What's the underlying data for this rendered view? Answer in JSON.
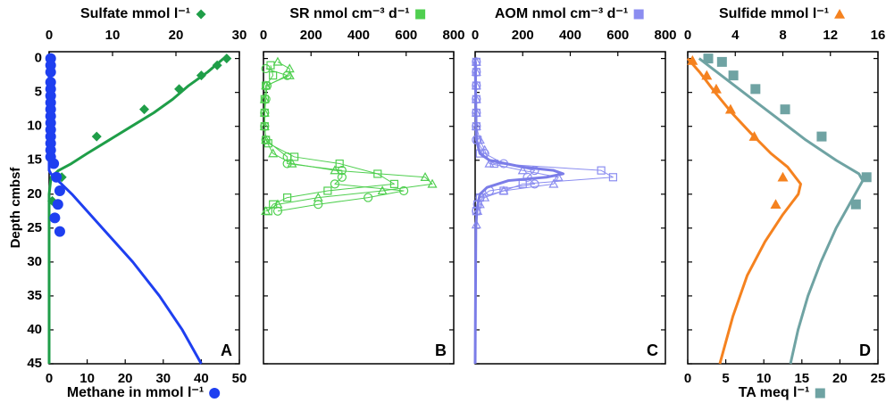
{
  "chart_data": [
    {
      "type": "scatter",
      "panel_label": "A",
      "ylabel": "Depth cmbsf",
      "show_ytick_labels": true,
      "ylim": [
        -1,
        45
      ],
      "yticks": [
        0,
        5,
        10,
        15,
        20,
        25,
        30,
        35,
        40,
        45
      ],
      "x2label": "Sulfate mmol l⁻¹",
      "x2lim": [
        0,
        30
      ],
      "x2ticks": [
        0,
        10,
        20,
        30
      ],
      "xlabel": "Methane in mmol l⁻¹",
      "xlim": [
        0,
        50
      ],
      "xticks": [
        0,
        10,
        20,
        30,
        40,
        50
      ],
      "series": [
        {
          "axis": "x2",
          "color": "#1f9e48",
          "marker": "diamond",
          "filled": true,
          "line": false,
          "depth": [
            0,
            1,
            2.5,
            4.5,
            7.5,
            11.5,
            17.5,
            21
          ],
          "values": [
            28,
            26.5,
            24,
            20.5,
            15,
            7.5,
            2,
            0.5
          ]
        },
        {
          "axis": "x2",
          "color": "#1f9e48",
          "marker": "none",
          "filled": false,
          "line": true,
          "depth": [
            0,
            2,
            4,
            6,
            8,
            10,
            12,
            14,
            15.5,
            16.5,
            17.5,
            20,
            45
          ],
          "values": [
            27.5,
            25,
            22,
            19.5,
            16.5,
            13,
            9.5,
            6,
            3.5,
            1.5,
            0.3,
            0,
            0
          ]
        },
        {
          "axis": "x",
          "color": "#1e3ff0",
          "marker": "circle",
          "filled": true,
          "line": false,
          "depth": [
            0,
            1,
            2,
            3.5,
            4.5,
            5.5,
            6.5,
            7.5,
            8.5,
            9.5,
            10.5,
            11.5,
            12.5,
            13.5,
            14.5,
            15.5,
            17.5,
            19.5,
            21.5,
            23.5,
            25.5
          ],
          "values": [
            0.4,
            0.4,
            0.4,
            0.4,
            0.4,
            0.4,
            0.4,
            0.4,
            0.4,
            0.4,
            0.4,
            0.4,
            0.4,
            0.4,
            0.4,
            1.2,
            1.9,
            2.8,
            2.3,
            1.5,
            2.8
          ]
        },
        {
          "axis": "x",
          "color": "#1e3ff0",
          "marker": "none",
          "filled": false,
          "line": true,
          "depth": [
            0,
            16.5,
            17,
            20,
            25,
            30,
            35,
            40,
            45
          ],
          "values": [
            0,
            0,
            0.5,
            6,
            14,
            22,
            29,
            35,
            40
          ]
        }
      ]
    },
    {
      "type": "scatter",
      "panel_label": "B",
      "show_ytick_labels": false,
      "ylim": [
        -1,
        45
      ],
      "yticks": [
        0,
        5,
        10,
        15,
        20,
        25,
        30,
        35,
        40,
        45
      ],
      "x2label": "SR nmol cm⁻³ d⁻¹",
      "x2lim": [
        0,
        800
      ],
      "x2ticks": [
        0,
        200,
        400,
        600,
        800
      ],
      "series": [
        {
          "axis": "x2",
          "color": "#4fcf4f",
          "marker": "square",
          "filled": false,
          "line": true,
          "depth": [
            1,
            2.5,
            4,
            6,
            8,
            10,
            12,
            12.5,
            14.5,
            15.5,
            17,
            18.5,
            19.5,
            20.5,
            21.5,
            22.5
          ],
          "values": [
            30,
            40,
            10,
            5,
            5,
            5,
            10,
            20,
            130,
            320,
            480,
            550,
            270,
            100,
            40,
            20
          ]
        },
        {
          "axis": "x2",
          "color": "#4fcf4f",
          "marker": "circle",
          "filled": false,
          "line": true,
          "depth": [
            1.5,
            2.5,
            4,
            6,
            8,
            10,
            12,
            14.5,
            15.5,
            16.5,
            17.5,
            18.5,
            19.5,
            20.5,
            21.5,
            22.5
          ],
          "values": [
            10,
            100,
            15,
            10,
            5,
            5,
            10,
            100,
            100,
            330,
            330,
            300,
            590,
            440,
            230,
            60
          ]
        },
        {
          "axis": "x2",
          "color": "#4fcf4f",
          "marker": "triangle",
          "filled": false,
          "line": true,
          "depth": [
            0.5,
            1.5,
            2.5,
            4,
            6,
            8,
            10,
            12,
            14,
            15.5,
            16.5,
            17.5,
            18.5,
            19.5,
            20.5,
            21.5,
            22.5
          ],
          "values": [
            60,
            110,
            110,
            10,
            5,
            5,
            5,
            10,
            40,
            120,
            300,
            680,
            710,
            500,
            230,
            60,
            10
          ]
        }
      ]
    },
    {
      "type": "scatter",
      "panel_label": "C",
      "show_ytick_labels": false,
      "ylim": [
        -1,
        45
      ],
      "yticks": [
        0,
        5,
        10,
        15,
        20,
        25,
        30,
        35,
        40,
        45
      ],
      "x2label": "AOM nmol cm⁻³ d⁻¹",
      "x2lim": [
        0,
        800
      ],
      "x2ticks": [
        0,
        200,
        400,
        600,
        800
      ],
      "series": [
        {
          "axis": "x2",
          "color": "#8b8df0",
          "marker": "square",
          "filled": false,
          "line": true,
          "depth": [
            0.5,
            2,
            4,
            6,
            8,
            10,
            12,
            14,
            15.5,
            16.5,
            17.5,
            18.5,
            19.5,
            20.5,
            21.5,
            22.5
          ],
          "values": [
            5,
            5,
            5,
            5,
            5,
            5,
            10,
            20,
            80,
            530,
            580,
            200,
            120,
            20,
            10,
            5
          ]
        },
        {
          "axis": "x2",
          "color": "#8b8df0",
          "marker": "circle",
          "filled": false,
          "line": true,
          "depth": [
            0.5,
            2,
            4,
            6,
            8,
            10,
            12,
            14,
            15.5,
            16.5,
            17.5,
            18.5,
            19.5,
            20.5,
            21.5,
            22.5
          ],
          "values": [
            5,
            5,
            5,
            5,
            5,
            5,
            5,
            40,
            120,
            250,
            220,
            250,
            60,
            20,
            10,
            5
          ]
        },
        {
          "axis": "x2",
          "color": "#8b8df0",
          "marker": "triangle",
          "filled": false,
          "line": true,
          "depth": [
            0.5,
            2,
            4,
            6,
            8,
            10,
            12,
            13.5,
            15.5,
            16.5,
            17.5,
            18.5,
            19.5,
            20.5,
            21.5,
            22.5,
            24.5
          ],
          "values": [
            5,
            5,
            5,
            5,
            5,
            5,
            20,
            40,
            60,
            200,
            350,
            330,
            120,
            40,
            20,
            10,
            5
          ]
        },
        {
          "axis": "x2",
          "color": "#7b7de8",
          "marker": "none",
          "filled": false,
          "line": true,
          "depth": [
            0,
            12,
            14,
            15,
            16,
            16.5,
            17,
            17.5,
            18,
            19,
            20,
            22,
            25,
            45
          ],
          "values": [
            0,
            5,
            20,
            60,
            200,
            330,
            370,
            300,
            140,
            50,
            20,
            8,
            3,
            0
          ]
        }
      ]
    },
    {
      "type": "scatter",
      "panel_label": "D",
      "show_ytick_labels": false,
      "ylim": [
        -1,
        45
      ],
      "yticks": [
        0,
        5,
        10,
        15,
        20,
        25,
        30,
        35,
        40,
        45
      ],
      "x2label": "Sulfide mmol l⁻¹",
      "x2lim": [
        0,
        16
      ],
      "x2ticks": [
        0,
        4,
        8,
        12,
        16
      ],
      "xlabel": "TA meq l⁻¹",
      "xlim": [
        0,
        25
      ],
      "xticks": [
        0,
        5,
        10,
        15,
        20,
        25
      ],
      "series": [
        {
          "axis": "x2",
          "color": "#f5821f",
          "marker": "triangle",
          "filled": true,
          "line": false,
          "depth": [
            0.3,
            2.5,
            4.5,
            7.5,
            11.5,
            17.5,
            21.5
          ],
          "values": [
            0.4,
            1.6,
            2.4,
            3.6,
            5.6,
            8,
            7.4
          ]
        },
        {
          "axis": "x2",
          "color": "#f5821f",
          "marker": "none",
          "filled": false,
          "line": true,
          "depth": [
            0,
            2,
            5,
            8,
            11,
            14,
            16,
            18.5,
            20,
            23,
            27,
            32,
            38,
            45
          ],
          "values": [
            0,
            1,
            2.3,
            3.7,
            5.3,
            7,
            8.4,
            9.5,
            9.3,
            8,
            6.5,
            5,
            3.8,
            2.7
          ]
        },
        {
          "axis": "x",
          "color": "#6fa3a3",
          "marker": "square",
          "filled": true,
          "line": false,
          "depth": [
            0,
            0.5,
            2.5,
            4.5,
            7.5,
            11.5,
            17.5,
            21.5
          ],
          "values": [
            2.7,
            4.5,
            6,
            8.9,
            12.8,
            17.6,
            23.5,
            22.1
          ]
        },
        {
          "axis": "x",
          "color": "#6fa3a3",
          "marker": "none",
          "filled": false,
          "line": true,
          "depth": [
            0,
            3,
            6,
            9,
            12,
            15,
            17,
            18,
            20,
            25,
            30,
            35,
            40,
            45
          ],
          "values": [
            1.5,
            5,
            8.5,
            12,
            15.5,
            19.5,
            22.5,
            23,
            22,
            19.5,
            17.5,
            15.8,
            14.5,
            13.5
          ]
        }
      ]
    }
  ]
}
